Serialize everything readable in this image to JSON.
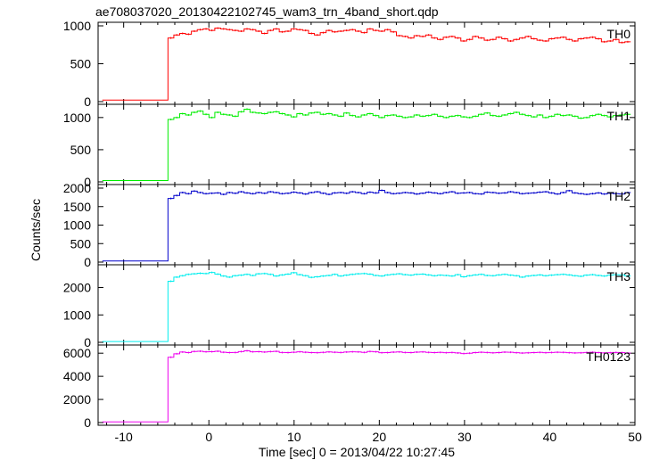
{
  "chart_data": {
    "type": "line",
    "title": "ae708037020_20130422102745_wam3_trn_4band_short.qdp",
    "xlabel": "Time [sec] 0 = 2013/04/22 10:27:45",
    "ylabel": "Counts/sec",
    "xlim": [
      -13,
      50
    ],
    "x_ticks": [
      -10,
      0,
      10,
      20,
      30,
      40,
      50
    ],
    "grid": false,
    "onset_time": -4.8,
    "panels": [
      {
        "name": "TH0",
        "color": "#ff0000",
        "ylim": [
          0,
          1000
        ],
        "y_ticks": [
          0,
          500,
          1000
        ],
        "pre_level": 20,
        "values": [
          840,
          880,
          900,
          890,
          930,
          950,
          960,
          940,
          970,
          960,
          950,
          940,
          930,
          960,
          950,
          930,
          900,
          940,
          960,
          920,
          930,
          960,
          950,
          940,
          900,
          880,
          910,
          940,
          920,
          930,
          940,
          950,
          930,
          910,
          960,
          940,
          930,
          950,
          920,
          870,
          860,
          840,
          870,
          860,
          880,
          840,
          820,
          850,
          860,
          840,
          800,
          820,
          860,
          840,
          810,
          820,
          850,
          830,
          800,
          820,
          840,
          860,
          830,
          810,
          800,
          830,
          840,
          850,
          820,
          800,
          830,
          840,
          850,
          830,
          790,
          800,
          820,
          780,
          790
        ]
      },
      {
        "name": "TH1",
        "color": "#00ee00",
        "ylim": [
          0,
          1150
        ],
        "y_ticks": [
          0,
          500,
          1000
        ],
        "pre_level": 20,
        "values": [
          970,
          1000,
          1060,
          1040,
          1080,
          1100,
          1050,
          1000,
          1080,
          1050,
          1040,
          1020,
          1090,
          1130,
          1080,
          1070,
          1060,
          1080,
          1090,
          1060,
          1040,
          1010,
          1060,
          1040,
          1070,
          1080,
          1050,
          1060,
          1040,
          1020,
          1070,
          1030,
          1010,
          1040,
          1060,
          1030,
          1000,
          1030,
          1040,
          1020,
          1000,
          1010,
          1040,
          1020,
          1030,
          1050,
          1020,
          1000,
          1020,
          1030,
          1010,
          1000,
          1020,
          1050,
          1070,
          1030,
          1020,
          1040,
          1060,
          1080,
          1050,
          1030,
          1010,
          1040,
          1000,
          1020,
          1050,
          1030,
          1040,
          1020,
          990,
          1000,
          1030,
          1050,
          1030,
          1010,
          1030,
          1040,
          1050
        ]
      },
      {
        "name": "TH2",
        "color": "#0000cc",
        "ylim": [
          0,
          2000
        ],
        "y_ticks": [
          0,
          500,
          1000,
          1500,
          2000
        ],
        "pre_level": 30,
        "values": [
          1720,
          1800,
          1880,
          1850,
          1920,
          1880,
          1850,
          1860,
          1870,
          1830,
          1880,
          1860,
          1900,
          1870,
          1850,
          1880,
          1860,
          1900,
          1880,
          1850,
          1860,
          1890,
          1870,
          1840,
          1880,
          1900,
          1860,
          1830,
          1870,
          1880,
          1860,
          1900,
          1880,
          1850,
          1890,
          1870,
          1940,
          1880,
          1850,
          1860,
          1880,
          1870,
          1840,
          1860,
          1890,
          1870,
          1850,
          1880,
          1900,
          1860,
          1870,
          1880,
          1850,
          1840,
          1890,
          1880,
          1860,
          1870,
          1900,
          1880,
          1850,
          1860,
          1870,
          1890,
          1900,
          1870,
          1840,
          1880,
          1930,
          1870,
          1850,
          1830,
          1850,
          1870,
          1840,
          1860,
          1850,
          1840,
          1880
        ]
      },
      {
        "name": "TH3",
        "color": "#00eeee",
        "ylim": [
          0,
          2700
        ],
        "y_ticks": [
          0,
          1000,
          2000
        ],
        "pre_level": 30,
        "values": [
          2230,
          2380,
          2430,
          2480,
          2500,
          2520,
          2510,
          2550,
          2490,
          2420,
          2380,
          2430,
          2450,
          2480,
          2440,
          2500,
          2510,
          2480,
          2420,
          2460,
          2490,
          2540,
          2470,
          2430,
          2370,
          2390,
          2420,
          2440,
          2480,
          2420,
          2450,
          2480,
          2500,
          2510,
          2490,
          2440,
          2420,
          2460,
          2480,
          2500,
          2470,
          2450,
          2480,
          2490,
          2460,
          2430,
          2450,
          2440,
          2420,
          2470,
          2390,
          2430,
          2460,
          2480,
          2440,
          2430,
          2460,
          2480,
          2450,
          2430,
          2380,
          2420,
          2440,
          2460,
          2430,
          2450,
          2470,
          2480,
          2460,
          2430,
          2410,
          2450,
          2470,
          2440,
          2420,
          2450,
          2470,
          2460,
          2420
        ]
      },
      {
        "name": "TH0123",
        "color": "#ee00ee",
        "ylim": [
          0,
          6400
        ],
        "y_ticks": [
          0,
          2000,
          4000,
          6000
        ],
        "pre_level": 60,
        "values": [
          5650,
          5950,
          6100,
          6050,
          6150,
          6170,
          6120,
          6130,
          6170,
          6080,
          6050,
          6060,
          6140,
          6210,
          6120,
          6130,
          6100,
          6140,
          6160,
          6060,
          6050,
          6080,
          6120,
          6080,
          6050,
          6040,
          6070,
          6110,
          6080,
          6060,
          6100,
          6120,
          6110,
          6070,
          6150,
          6120,
          6040,
          6050,
          6090,
          6110,
          6060,
          6050,
          6090,
          6110,
          6070,
          6050,
          6070,
          6040,
          6060,
          6020,
          5970,
          6000,
          6050,
          6080,
          6060,
          6030,
          6050,
          6090,
          6080,
          6040,
          6010,
          6030,
          6050,
          6070,
          6040,
          6060,
          6080,
          6070,
          6040,
          6020,
          6030,
          6060,
          6080,
          6050,
          6020,
          6040,
          6060,
          6050,
          6010
        ]
      }
    ]
  }
}
